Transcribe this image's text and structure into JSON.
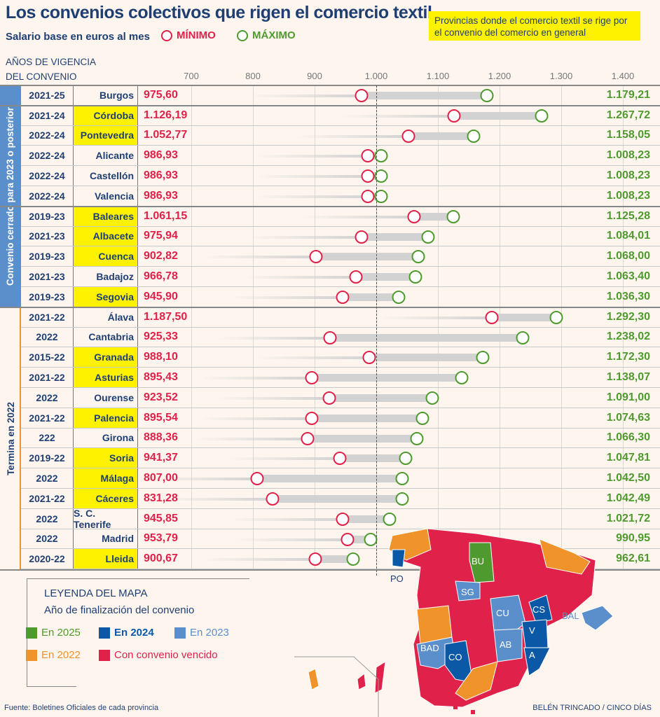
{
  "title": "Los convenios colectivos que rigen el comercio textil",
  "subtitle": "Salario base en euros al mes",
  "legend": {
    "min": "MÍNIMO",
    "max": "MÁXIMO",
    "min_color": "#e0214a",
    "max_color": "#4f9a2e"
  },
  "note": "Provincias donde el comercio textil se rige por el convenio del comercio en general",
  "years_header": [
    "AÑOS DE VIGENCIA",
    "DEL CONVENIO"
  ],
  "groups": {
    "g1": "Convenio cerrado para 2023 o posterior",
    "g2": "Termina en 2022"
  },
  "chart_data": {
    "type": "dumbbell",
    "title": "Los convenios colectivos que rigen el comercio textil",
    "xlabel": "Salario base en euros al mes",
    "xlim": [
      700,
      1400
    ],
    "xticks": [
      700,
      800,
      900,
      1000,
      1100,
      1200,
      1300,
      1400
    ],
    "xtick_labels": [
      "700",
      "800",
      "900",
      "1.000",
      "1.100",
      "1.200",
      "1.300",
      "1.400"
    ],
    "reference_line": 1000,
    "rows": [
      {
        "years": "2021-25",
        "province": "Burgos",
        "general": false,
        "min": 975.6,
        "max": 1179.21,
        "min_label": "975,60",
        "max_label": "1.179,21"
      },
      {
        "years": "2021-24",
        "province": "Córdoba",
        "general": true,
        "min": 1126.19,
        "max": 1267.72,
        "min_label": "1.126,19",
        "max_label": "1.267,72"
      },
      {
        "years": "2022-24",
        "province": "Pontevedra",
        "general": true,
        "min": 1052.77,
        "max": 1158.05,
        "min_label": "1.052,77",
        "max_label": "1.158,05"
      },
      {
        "years": "2022-24",
        "province": "Alicante",
        "general": false,
        "min": 986.93,
        "max": 1008.23,
        "min_label": "986,93",
        "max_label": "1.008,23"
      },
      {
        "years": "2022-24",
        "province": "Castellón",
        "general": false,
        "min": 986.93,
        "max": 1008.23,
        "min_label": "986,93",
        "max_label": "1.008,23"
      },
      {
        "years": "2022-24",
        "province": "Valencia",
        "general": false,
        "min": 986.93,
        "max": 1008.23,
        "min_label": "986,93",
        "max_label": "1.008,23"
      },
      {
        "years": "2019-23",
        "province": "Baleares",
        "general": true,
        "min": 1061.15,
        "max": 1125.28,
        "min_label": "1.061,15",
        "max_label": "1.125,28"
      },
      {
        "years": "2021-23",
        "province": "Albacete",
        "general": true,
        "min": 975.94,
        "max": 1084.01,
        "min_label": "975,94",
        "max_label": "1.084,01"
      },
      {
        "years": "2019-23",
        "province": "Cuenca",
        "general": true,
        "min": 902.82,
        "max": 1068.0,
        "min_label": "902,82",
        "max_label": "1.068,00"
      },
      {
        "years": "2021-23",
        "province": "Badajoz",
        "general": false,
        "min": 966.78,
        "max": 1063.4,
        "min_label": "966,78",
        "max_label": "1.063,40"
      },
      {
        "years": "2019-23",
        "province": "Segovia",
        "general": true,
        "min": 945.9,
        "max": 1036.3,
        "min_label": "945,90",
        "max_label": "1.036,30"
      },
      {
        "years": "2021-22",
        "province": "Álava",
        "general": false,
        "min": 1187.5,
        "max": 1292.3,
        "min_label": "1.187,50",
        "max_label": "1.292,30"
      },
      {
        "years": "2022",
        "province": "Cantabria",
        "general": false,
        "min": 925.33,
        "max": 1238.02,
        "min_label": "925,33",
        "max_label": "1.238,02"
      },
      {
        "years": "2015-22",
        "province": "Granada",
        "general": true,
        "min": 988.1,
        "max": 1172.3,
        "min_label": "988,10",
        "max_label": "1.172,30"
      },
      {
        "years": "2021-22",
        "province": "Asturias",
        "general": true,
        "min": 895.43,
        "max": 1138.07,
        "min_label": "895,43",
        "max_label": "1.138,07"
      },
      {
        "years": "2022",
        "province": "Ourense",
        "general": false,
        "min": 923.52,
        "max": 1091.0,
        "min_label": "923,52",
        "max_label": "1.091,00"
      },
      {
        "years": "2021-22",
        "province": "Palencia",
        "general": true,
        "min": 895.54,
        "max": 1074.63,
        "min_label": "895,54",
        "max_label": "1.074,63"
      },
      {
        "years": "222",
        "province": "Girona",
        "general": false,
        "min": 888.36,
        "max": 1066.3,
        "min_label": "888,36",
        "max_label": "1.066,30"
      },
      {
        "years": "2019-22",
        "province": "Soria",
        "general": true,
        "min": 941.37,
        "max": 1047.81,
        "min_label": "941,37",
        "max_label": "1.047,81"
      },
      {
        "years": "2022",
        "province": "Málaga",
        "general": true,
        "min": 807.0,
        "max": 1042.5,
        "min_label": "807,00",
        "max_label": "1.042,50"
      },
      {
        "years": "2021-22",
        "province": "Cáceres",
        "general": true,
        "min": 831.28,
        "max": 1042.49,
        "min_label": "831,28",
        "max_label": "1.042,49"
      },
      {
        "years": "2022",
        "province": "S. C. Tenerife",
        "general": false,
        "min": 945.85,
        "max": 1021.72,
        "min_label": "945,85",
        "max_label": "1.021,72"
      },
      {
        "years": "2022",
        "province": "Madrid",
        "general": false,
        "min": 953.79,
        "max": 990.95,
        "min_label": "953,79",
        "max_label": "990,95"
      },
      {
        "years": "2020-22",
        "province": "Lleida",
        "general": true,
        "min": 900.67,
        "max": 962.61,
        "min_label": "900,67",
        "max_label": "962,61"
      }
    ]
  },
  "map_legend": {
    "title": "LEYENDA DEL MAPA",
    "subtitle": "Año de finalización del convenio",
    "items": [
      {
        "label": "En 2025",
        "color": "#4f9a2e"
      },
      {
        "label": "En 2024",
        "color": "#0b58a6"
      },
      {
        "label": "En 2023",
        "color": "#5b8fcb"
      },
      {
        "label": "En 2022",
        "color": "#f0932a"
      },
      {
        "label": "Con convenio vencido",
        "color": "#e0214a"
      }
    ]
  },
  "map_labels": {
    "bu": "BU",
    "sg": "SG",
    "cu": "CU",
    "cs": "CS",
    "v": "V",
    "a": "A",
    "ab": "AB",
    "bad": "BAD",
    "co": "CO",
    "bal": "BAL",
    "po": "PO"
  },
  "source": "Fuente: Boletines Oficiales de cada provincia",
  "author": "BELÉN TRINCADO / CINCO DÍAS"
}
